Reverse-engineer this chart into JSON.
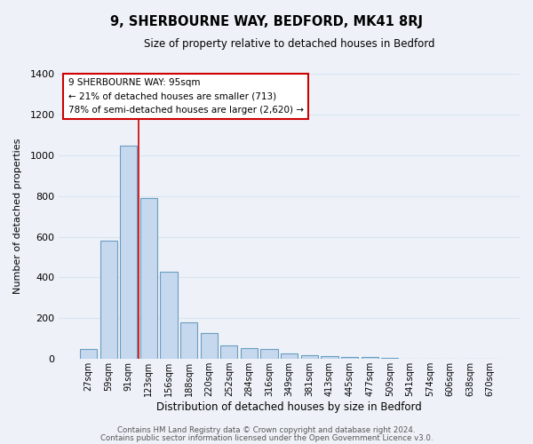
{
  "title": "9, SHERBOURNE WAY, BEDFORD, MK41 8RJ",
  "subtitle": "Size of property relative to detached houses in Bedford",
  "xlabel": "Distribution of detached houses by size in Bedford",
  "ylabel": "Number of detached properties",
  "bar_color": "#c5d8ee",
  "bar_edge_color": "#6b9dc2",
  "background_color": "#eef2f8",
  "grid_color": "#d8e4f0",
  "annotation_box_color": "#ffffff",
  "annotation_box_edge": "#cc0000",
  "annotation_line1": "9 SHERBOURNE WAY: 95sqm",
  "annotation_line2": "← 21% of detached houses are smaller (713)",
  "annotation_line3": "78% of semi-detached houses are larger (2,620) →",
  "categories": [
    "27sqm",
    "59sqm",
    "91sqm",
    "123sqm",
    "156sqm",
    "188sqm",
    "220sqm",
    "252sqm",
    "284sqm",
    "316sqm",
    "349sqm",
    "381sqm",
    "413sqm",
    "445sqm",
    "477sqm",
    "509sqm",
    "541sqm",
    "574sqm",
    "606sqm",
    "638sqm",
    "670sqm"
  ],
  "values": [
    50,
    580,
    1045,
    790,
    430,
    180,
    125,
    65,
    55,
    50,
    25,
    20,
    15,
    10,
    8,
    3,
    2,
    0,
    0,
    0,
    0
  ],
  "ylim": [
    0,
    1400
  ],
  "yticks": [
    0,
    200,
    400,
    600,
    800,
    1000,
    1200,
    1400
  ],
  "red_line_index": 2.5,
  "footer_line1": "Contains HM Land Registry data © Crown copyright and database right 2024.",
  "footer_line2": "Contains public sector information licensed under the Open Government Licence v3.0."
}
